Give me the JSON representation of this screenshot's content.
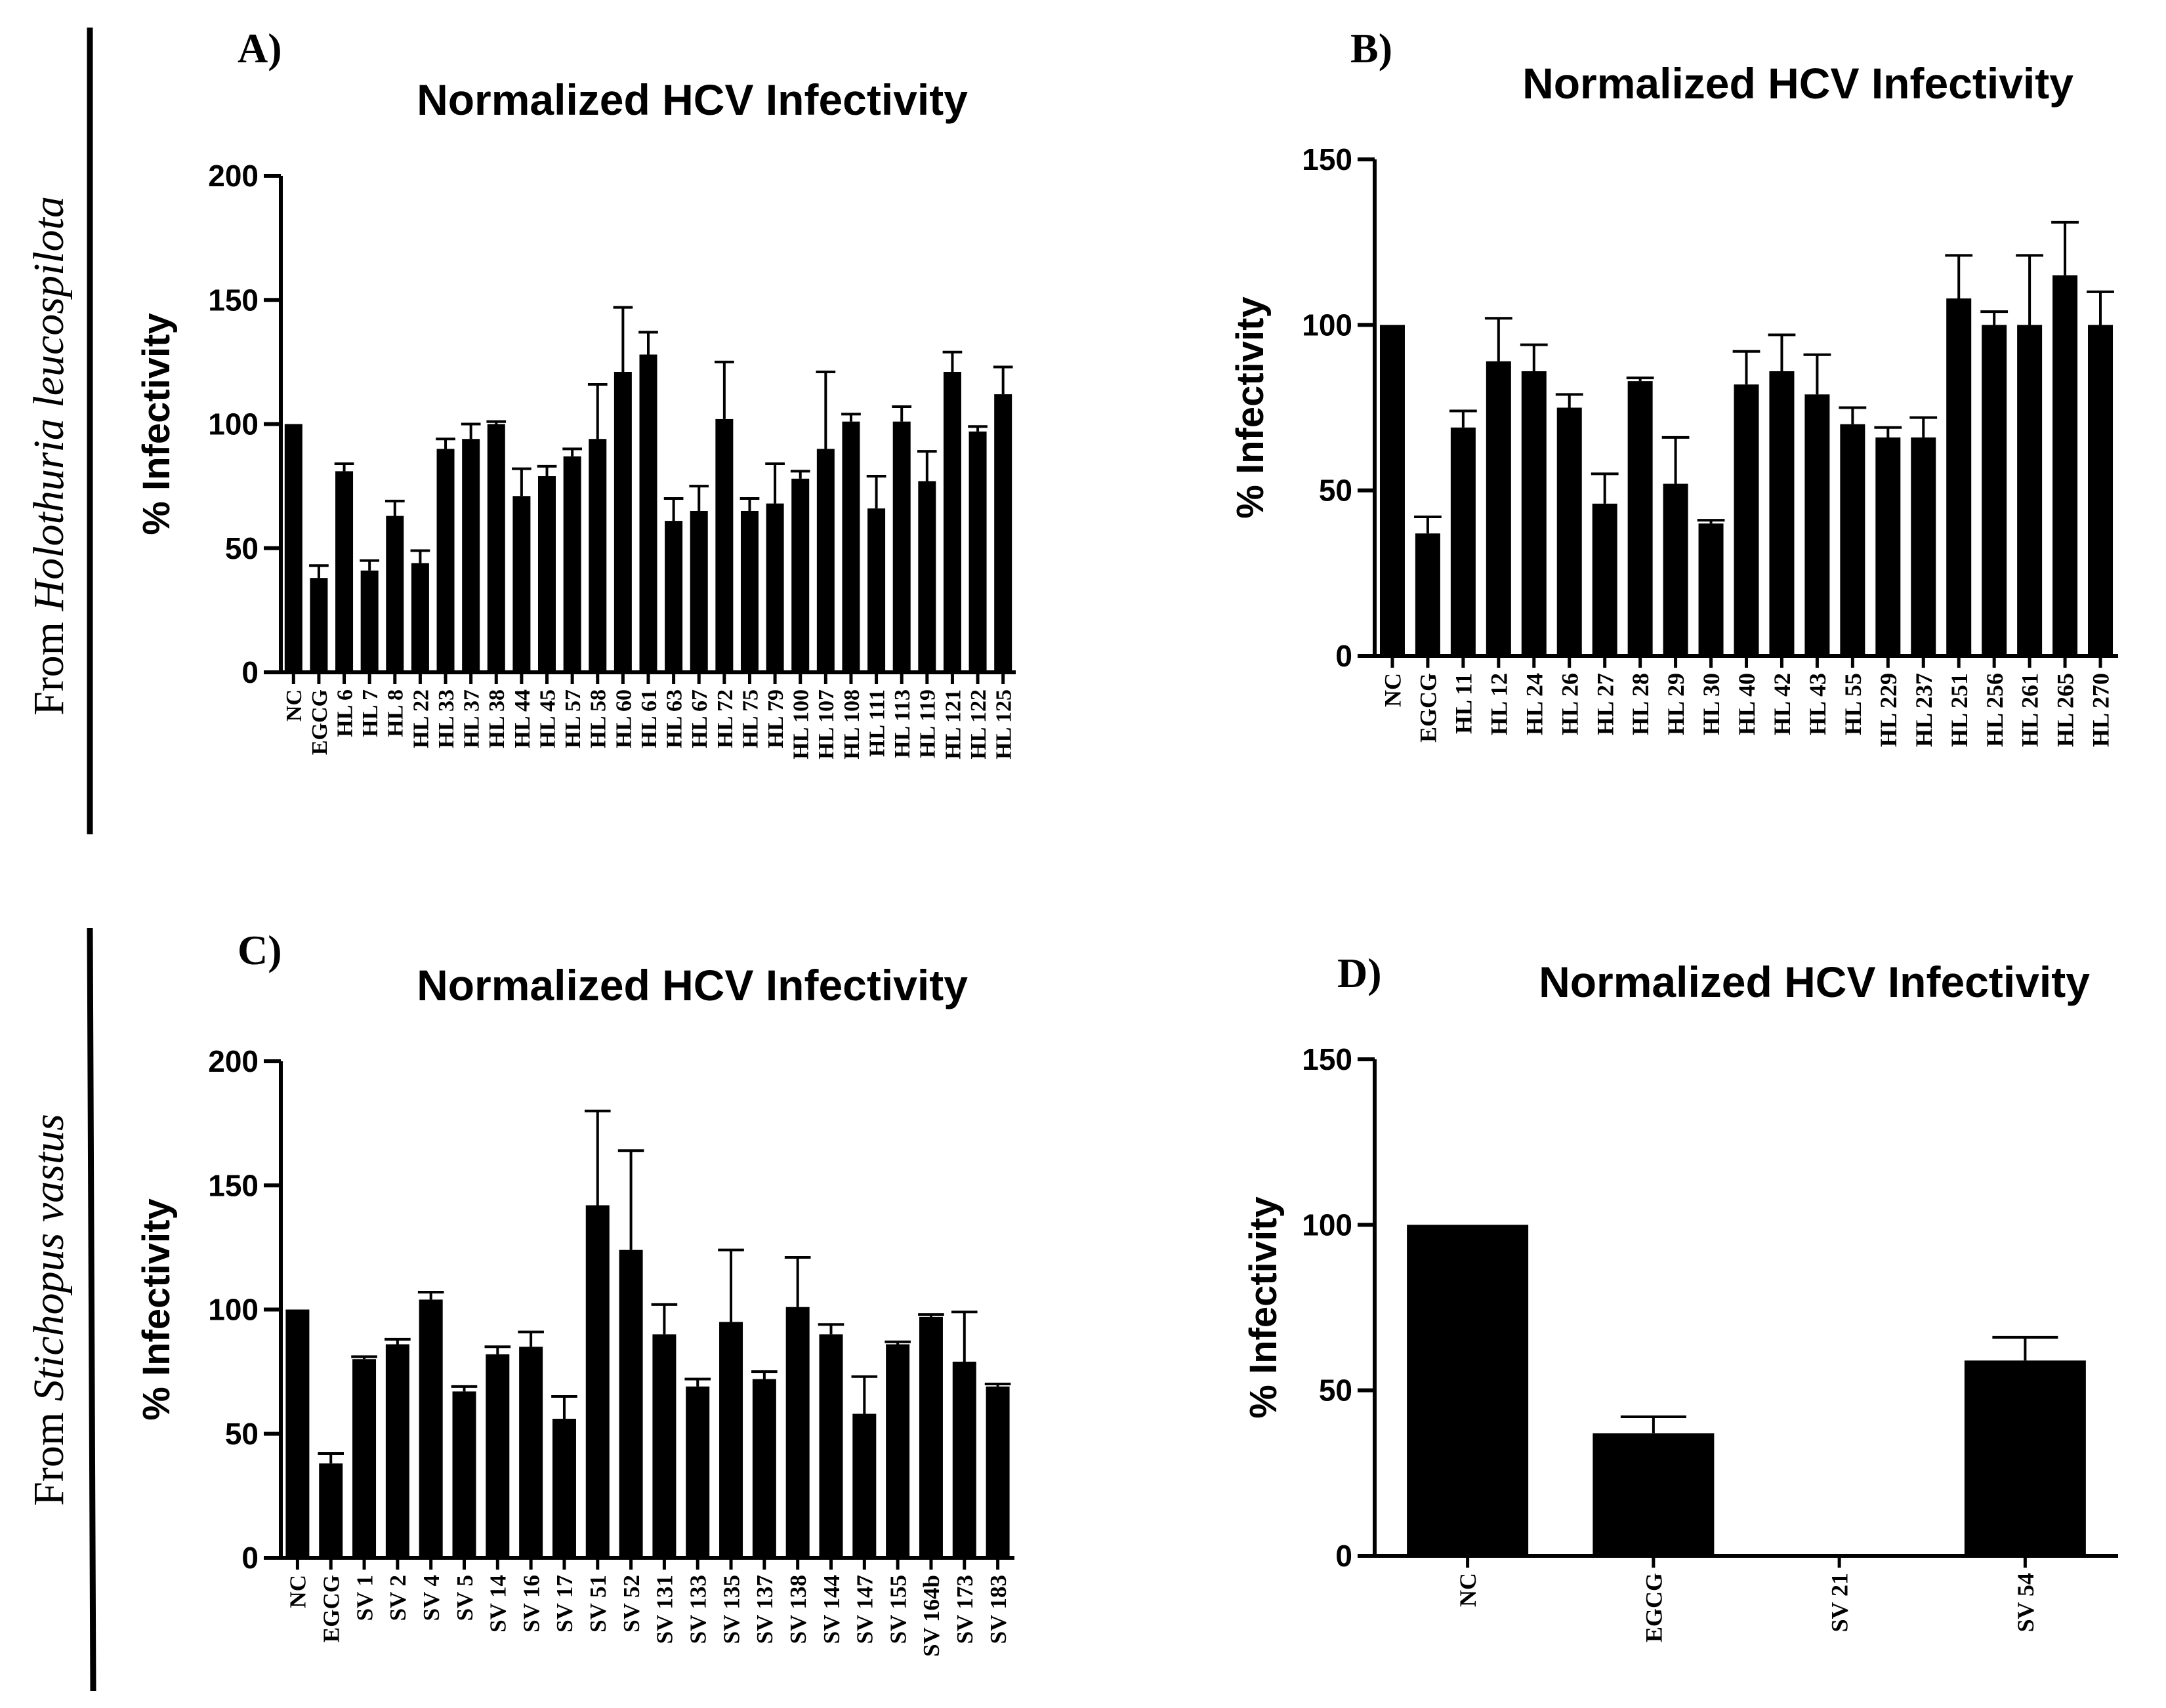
{
  "figure": {
    "side_labels": {
      "top": {
        "prefix": "From ",
        "species": "Holothuria leucospilota"
      },
      "bottom": {
        "prefix": "From ",
        "species": "Stichopus vastus"
      }
    }
  },
  "chart_data": [
    {
      "panel": "A)",
      "type": "bar",
      "title": "Normalized HCV Infectivity",
      "ylabel": "% Infectivity",
      "xlabel": "",
      "ylim": [
        0,
        200
      ],
      "yticks": [
        "0",
        "50",
        "100",
        "150",
        "200"
      ],
      "categories": [
        "NC",
        "EGCG",
        "HL 6",
        "HL 7",
        "HL 8",
        "HL 22",
        "HL 33",
        "HL 37",
        "HL 38",
        "HL 44",
        "HL 45",
        "HL 57",
        "HL 58",
        "HL 60",
        "HL 61",
        "HL 63",
        "HL 67",
        "HL 72",
        "HL 75",
        "HL 79",
        "HL 100",
        "HL 107",
        "HL 108",
        "HL 111",
        "HL 113",
        "HL 119",
        "HL 121",
        "HL 122",
        "HL 125"
      ],
      "values": [
        100,
        38,
        81,
        41,
        63,
        44,
        90,
        94,
        100,
        71,
        79,
        87,
        94,
        121,
        128,
        61,
        65,
        102,
        65,
        68,
        78,
        90,
        101,
        66,
        101,
        77,
        121,
        97,
        112
      ],
      "errors": [
        0,
        5,
        3,
        4,
        6,
        5,
        4,
        6,
        1,
        11,
        4,
        3,
        22,
        26,
        9,
        9,
        10,
        23,
        5,
        16,
        3,
        31,
        3,
        13,
        6,
        12,
        8,
        2,
        11
      ],
      "color": "#000000"
    },
    {
      "panel": "B)",
      "type": "bar",
      "title": "Normalized HCV Infectivity",
      "ylabel": "% Infectivity",
      "xlabel": "",
      "ylim": [
        0,
        150
      ],
      "yticks": [
        "0",
        "50",
        "100",
        "150"
      ],
      "categories": [
        "NC",
        "EGCG",
        "HL 11",
        "HL 12",
        "HL 24",
        "HL 26",
        "HL 27",
        "HL 28",
        "HL 29",
        "HL 30",
        "HL 40",
        "HL 42",
        "HL 43",
        "HL 55",
        "HL 229",
        "HL 237",
        "HL 251",
        "HL 256",
        "HL 261",
        "HL 265",
        "HL 270"
      ],
      "values": [
        100,
        37,
        69,
        89,
        86,
        75,
        46,
        83,
        52,
        40,
        82,
        86,
        79,
        70,
        66,
        66,
        108,
        100,
        100,
        115,
        100
      ],
      "errors": [
        0,
        5,
        5,
        13,
        8,
        4,
        9,
        1,
        14,
        1,
        10,
        11,
        12,
        5,
        3,
        6,
        13,
        4,
        21,
        16,
        10
      ],
      "color": "#000000"
    },
    {
      "panel": "C)",
      "type": "bar",
      "title": "Normalized HCV Infectivity",
      "ylabel": "% Infectivity",
      "xlabel": "",
      "ylim": [
        0,
        200
      ],
      "yticks": [
        "0",
        "50",
        "100",
        "150",
        "200"
      ],
      "categories": [
        "NC",
        "EGCG",
        "SV 1",
        "SV 2",
        "SV 4",
        "SV 5",
        "SV 14",
        "SV 16",
        "SV 17",
        "SV 51",
        "SV 52",
        "SV 131",
        "SV 133",
        "SV 135",
        "SV 137",
        "SV 138",
        "SV 144",
        "SV 147",
        "SV 155",
        "SV 164b",
        "SV 173",
        "SV 183"
      ],
      "values": [
        100,
        38,
        80,
        86,
        104,
        67,
        82,
        85,
        56,
        142,
        124,
        90,
        69,
        95,
        72,
        101,
        90,
        58,
        86,
        97,
        79,
        69
      ],
      "errors": [
        0,
        4,
        1,
        2,
        3,
        2,
        3,
        6,
        9,
        38,
        40,
        12,
        3,
        29,
        3,
        20,
        4,
        15,
        1,
        1,
        20,
        1
      ],
      "color": "#000000"
    },
    {
      "panel": "D)",
      "type": "bar",
      "title": "Normalized HCV Infectivity",
      "ylabel": "% Infectivity",
      "xlabel": "",
      "ylim": [
        0,
        150
      ],
      "yticks": [
        "0",
        "50",
        "100",
        "150"
      ],
      "categories": [
        "NC",
        "EGCG",
        "SV 21",
        "SV 54"
      ],
      "values": [
        100,
        37,
        0,
        59
      ],
      "errors": [
        0,
        5,
        0,
        7
      ],
      "color": "#000000"
    }
  ]
}
